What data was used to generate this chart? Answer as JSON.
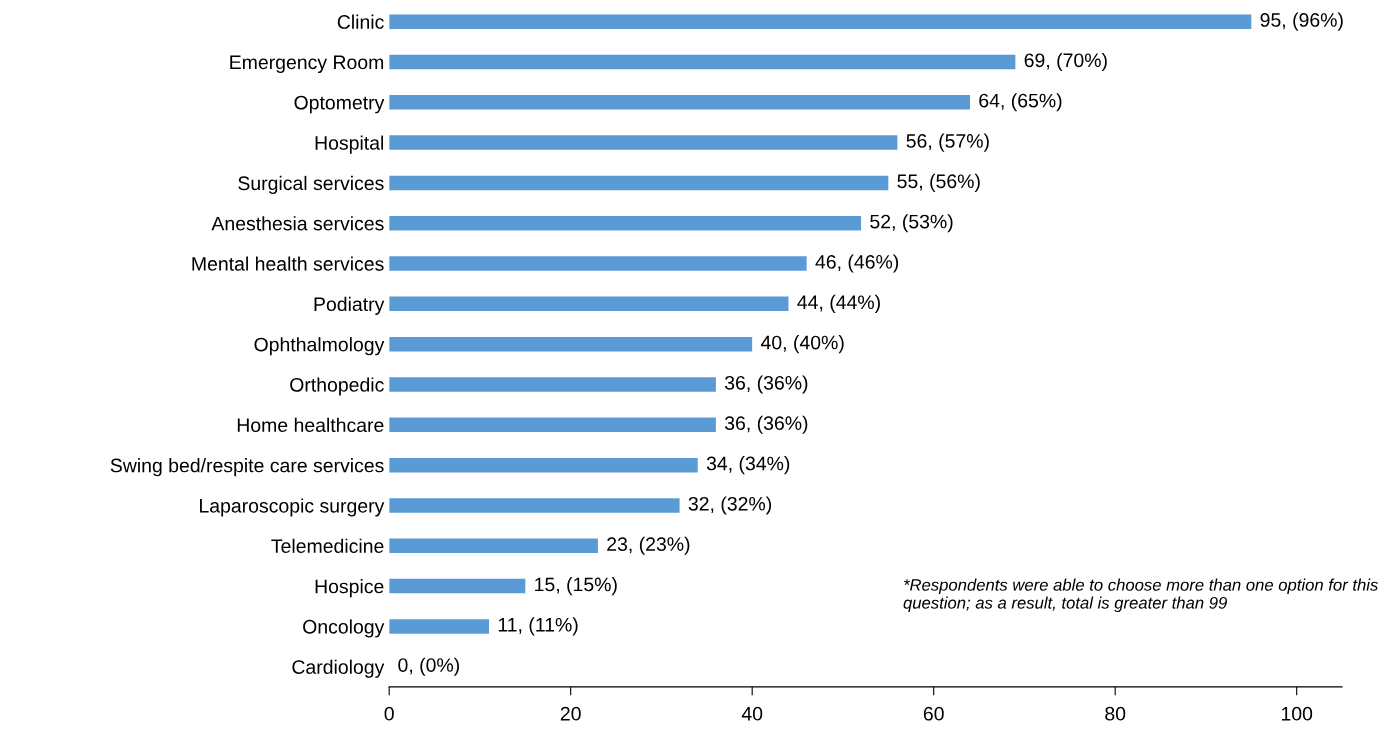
{
  "chart_data": {
    "type": "bar",
    "orientation": "horizontal",
    "categories": [
      "Clinic",
      "Emergency Room",
      "Optometry",
      "Hospital",
      "Surgical services",
      "Anesthesia services",
      "Mental health services",
      "Podiatry",
      "Ophthalmology",
      "Orthopedic",
      "Home healthcare",
      "Swing bed/respite care services",
      "Laparoscopic surgery",
      "Telemedicine",
      "Hospice",
      "Oncology",
      "Cardiology"
    ],
    "values": [
      95,
      69,
      64,
      56,
      55,
      52,
      46,
      44,
      40,
      36,
      36,
      34,
      32,
      23,
      15,
      11,
      0
    ],
    "value_labels": [
      "95, (96%)",
      "69, (70%)",
      "64, (65%)",
      "56, (57%)",
      "55, (56%)",
      "52, (53%)",
      "46, (46%)",
      "44, (44%)",
      "40, (40%)",
      "36, (36%)",
      "36, (36%)",
      "34, (34%)",
      "32, (32%)",
      "23, (23%)",
      "15, (15%)",
      "11, (11%)",
      "0, (0%)"
    ],
    "color": "#5b9bd5",
    "xlim": [
      0,
      105
    ],
    "xticks": [
      0,
      20,
      40,
      60,
      80,
      100
    ],
    "grid": false,
    "legend": false,
    "annotations": [
      "*Respondents were able to choose more than one option for this question; as a result, total is greater than 99"
    ]
  }
}
